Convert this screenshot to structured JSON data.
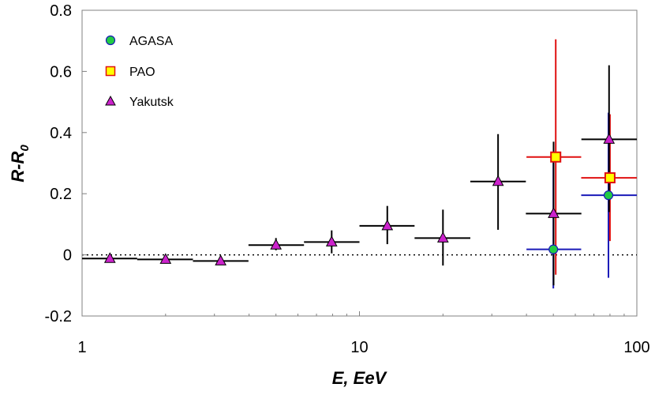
{
  "chart_data": {
    "type": "scatter",
    "title": "",
    "xlabel": "E, EeV",
    "ylabel_main": "R-R",
    "ylabel_sub": "0",
    "xscale": "log",
    "xlim": [
      1,
      100
    ],
    "ylim": [
      -0.2,
      0.8
    ],
    "x_ticks": [
      1,
      10,
      100
    ],
    "x_tick_labels": [
      "1",
      "10",
      "100"
    ],
    "y_ticks": [
      -0.2,
      0,
      0.2,
      0.4,
      0.6,
      0.8
    ],
    "y_tick_labels": [
      "-0.2",
      "0",
      "0.2",
      "0.4",
      "0.6",
      "0.8"
    ],
    "reference_line": {
      "y": 0,
      "style": "dotted"
    },
    "legend_position": "top-left",
    "series": [
      {
        "name": "AGASA",
        "marker": "circle",
        "fill": "#22cc44",
        "error_color": "#1a1ab8",
        "points": [
          {
            "x": 50,
            "y": 0.018,
            "xlo": 40,
            "xhi": 63,
            "ylo": -0.11,
            "yhi": 0.31
          },
          {
            "x": 79,
            "y": 0.195,
            "xlo": 63,
            "xhi": 100,
            "ylo": -0.075,
            "yhi": 0.465
          }
        ]
      },
      {
        "name": "PAO",
        "marker": "square",
        "fill": "#ffff00",
        "stroke": "#e01010",
        "error_color": "#e01010",
        "points": [
          {
            "x": 51,
            "y": 0.32,
            "xlo": 40,
            "xhi": 63,
            "ylo": -0.065,
            "yhi": 0.705
          },
          {
            "x": 80,
            "y": 0.252,
            "xlo": 63,
            "xhi": 100,
            "ylo": 0.045,
            "yhi": 0.46
          }
        ]
      },
      {
        "name": "Yakutsk",
        "marker": "triangle",
        "fill": "#cc22cc",
        "error_color": "#000000",
        "points": [
          {
            "x": 1.26,
            "y": -0.012,
            "xlo": 1.0,
            "xhi": 1.58,
            "ylo": -0.012,
            "yhi": -0.012
          },
          {
            "x": 2.0,
            "y": -0.015,
            "xlo": 1.58,
            "xhi": 2.51,
            "ylo": -0.015,
            "yhi": -0.015
          },
          {
            "x": 3.16,
            "y": -0.02,
            "xlo": 2.51,
            "xhi": 3.98,
            "ylo": -0.02,
            "yhi": -0.02
          },
          {
            "x": 5.0,
            "y": 0.032,
            "xlo": 3.98,
            "xhi": 6.31,
            "ylo": 0.015,
            "yhi": 0.055
          },
          {
            "x": 7.94,
            "y": 0.042,
            "xlo": 6.31,
            "xhi": 10.0,
            "ylo": 0.005,
            "yhi": 0.08
          },
          {
            "x": 12.6,
            "y": 0.095,
            "xlo": 10.0,
            "xhi": 15.8,
            "ylo": 0.035,
            "yhi": 0.16
          },
          {
            "x": 20.0,
            "y": 0.055,
            "xlo": 15.8,
            "xhi": 25.1,
            "ylo": -0.035,
            "yhi": 0.148
          },
          {
            "x": 31.6,
            "y": 0.24,
            "xlo": 25.1,
            "xhi": 39.8,
            "ylo": 0.082,
            "yhi": 0.395
          },
          {
            "x": 50.1,
            "y": 0.135,
            "xlo": 39.8,
            "xhi": 63.1,
            "ylo": -0.1,
            "yhi": 0.37
          },
          {
            "x": 79.4,
            "y": 0.378,
            "xlo": 63.1,
            "xhi": 100,
            "ylo": 0.14,
            "yhi": 0.62
          }
        ]
      }
    ]
  }
}
